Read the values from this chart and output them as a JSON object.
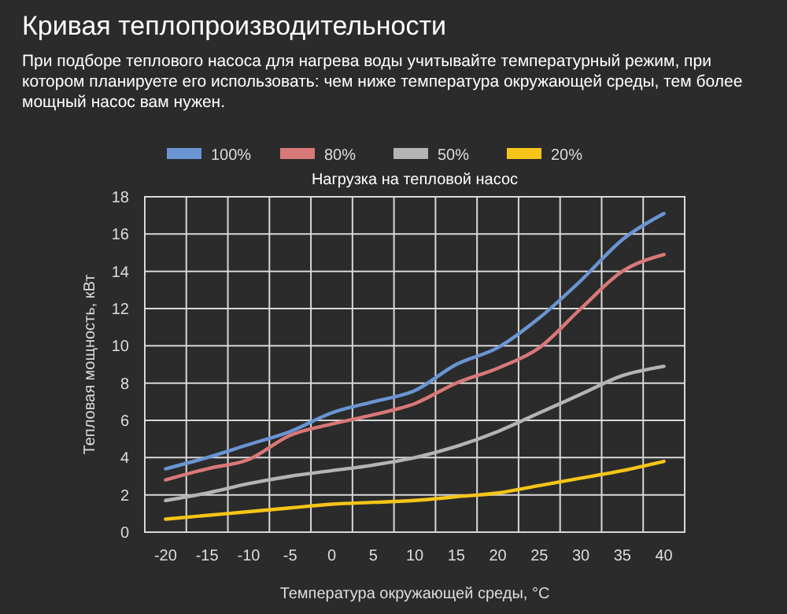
{
  "chart_data": {
    "type": "line",
    "title": "Кривая теплопроизводительности",
    "subtitle": "При подборе теплового насоса для нагрева воды учитывайте температурный режим, при котором планируете его использовать: чем ниже температура окружающей среды, тем более мощный насос вам нужен.",
    "legend_title": "Нагрузка на тепловой насос",
    "xlabel": "Температура окружающей среды, °C",
    "ylabel": "Тепловая мощность, кВт",
    "categories": [
      "-20",
      "-15",
      "-10",
      "-5",
      "0",
      "5",
      "10",
      "15",
      "20",
      "25",
      "30",
      "35",
      "40"
    ],
    "series": [
      {
        "name": "100%",
        "color": "#6a95d3",
        "values": [
          3.4,
          4.0,
          4.7,
          5.4,
          6.4,
          7.0,
          7.6,
          9.0,
          9.9,
          11.5,
          13.5,
          15.7,
          17.1
        ]
      },
      {
        "name": "80%",
        "color": "#d97878",
        "values": [
          2.8,
          3.4,
          3.9,
          5.2,
          5.8,
          6.3,
          6.9,
          8.0,
          8.8,
          9.9,
          12.0,
          14.0,
          14.9
        ]
      },
      {
        "name": "50%",
        "color": "#b4b4b4",
        "values": [
          1.7,
          2.1,
          2.6,
          3.0,
          3.3,
          3.6,
          4.0,
          4.6,
          5.4,
          6.4,
          7.4,
          8.4,
          8.9
        ]
      },
      {
        "name": "20%",
        "color": "#f5c518",
        "values": [
          0.7,
          0.9,
          1.1,
          1.3,
          1.5,
          1.6,
          1.7,
          1.9,
          2.1,
          2.5,
          2.9,
          3.3,
          3.8
        ]
      }
    ],
    "ylim": [
      0,
      18
    ],
    "yticks": [
      0,
      2,
      4,
      6,
      8,
      10,
      12,
      14,
      16,
      18
    ],
    "grid": true,
    "legend": "top",
    "line_style": "solid",
    "marker": "none"
  }
}
